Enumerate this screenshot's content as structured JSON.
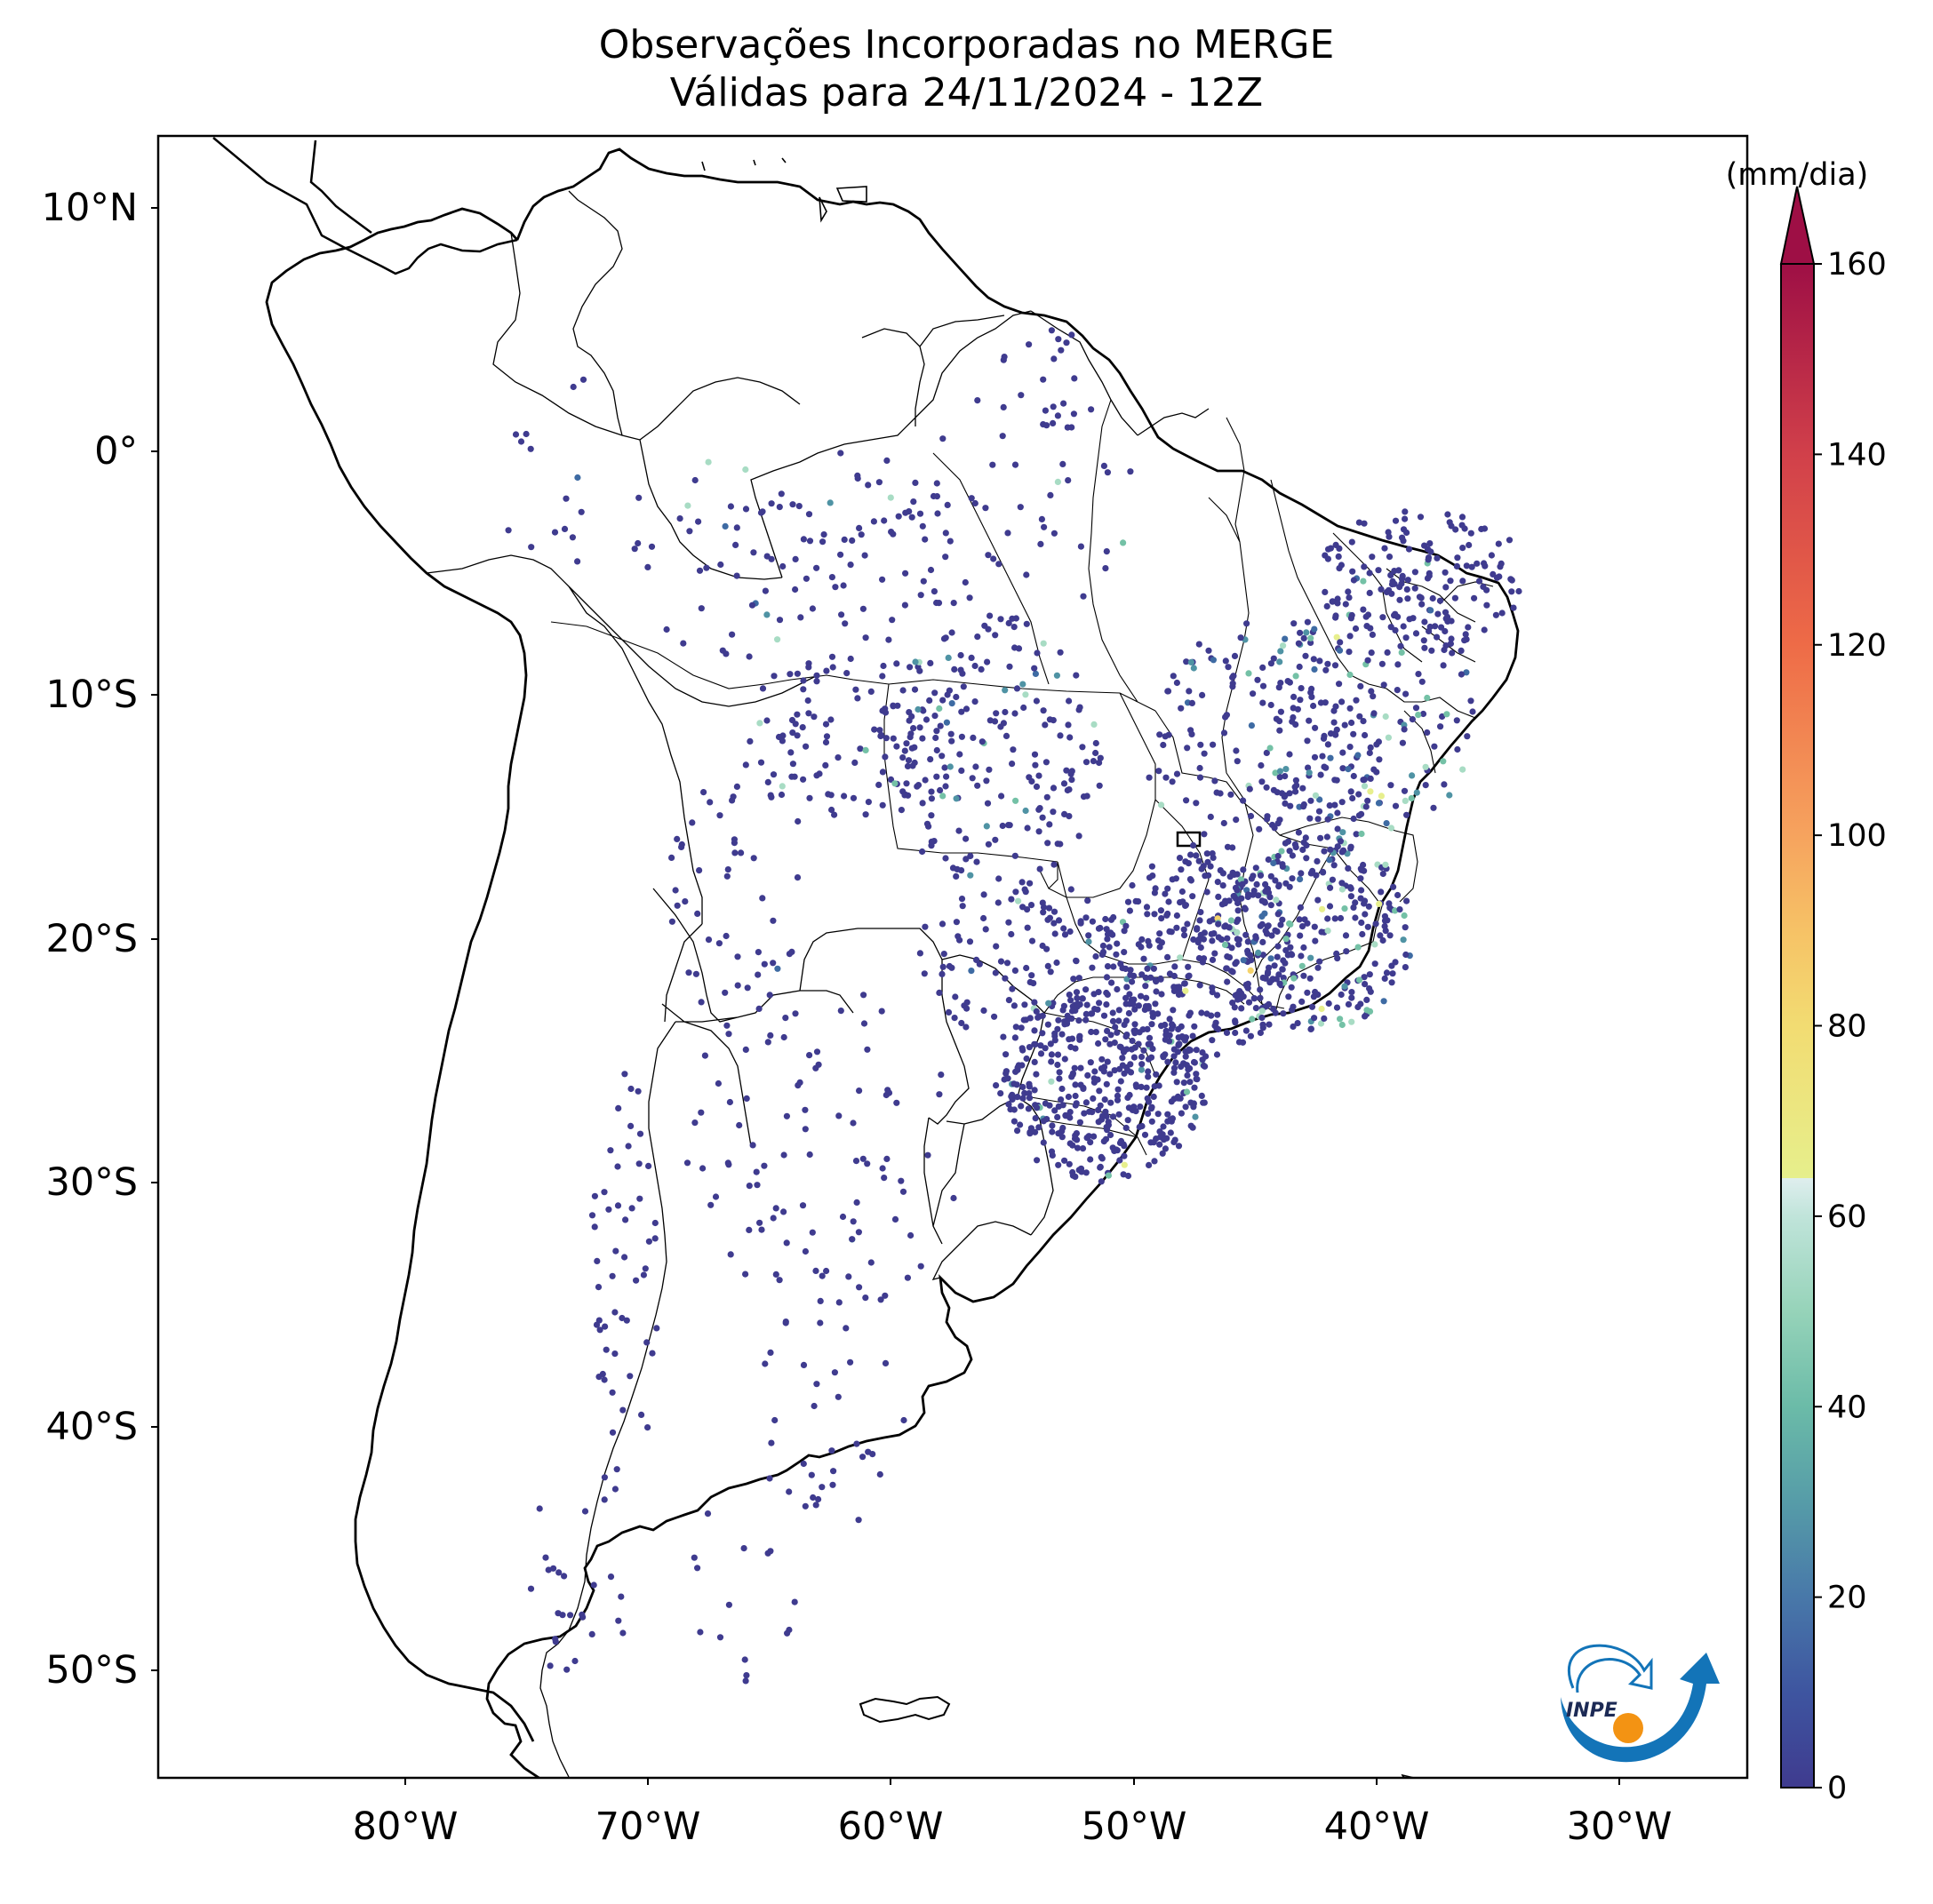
{
  "title": {
    "line1": "Observações Incorporadas no MERGE",
    "line2": "Válidas para 24/11/2024 - 12Z"
  },
  "map": {
    "type": "station-observation map",
    "region": "South America",
    "lat_range": [
      -56,
      13
    ],
    "lon_range": [
      -92,
      -25
    ],
    "lat_ticks": [
      "10°N",
      "0°",
      "10°S",
      "20°S",
      "30°S",
      "40°S",
      "50°S"
    ],
    "lon_ticks": [
      "80°W",
      "70°W",
      "60°W",
      "50°W",
      "40°W",
      "30°W"
    ]
  },
  "colorbar": {
    "unit": "(mm/dia)",
    "ticks": [
      "0",
      "20",
      "40",
      "60",
      "80",
      "100",
      "120",
      "140",
      "160"
    ],
    "range": [
      0,
      160
    ],
    "extend": "max",
    "colors": [
      "#3f3b8f",
      "#3e6ba3",
      "#4f93a4",
      "#74c1a6",
      "#a8dcc4",
      "#dfeeee",
      "#e7ef8d",
      "#f5d36b",
      "#f5a35f",
      "#ee6d47",
      "#d03c4a",
      "#9e0f45"
    ]
  },
  "logo": {
    "text": "INPE"
  }
}
